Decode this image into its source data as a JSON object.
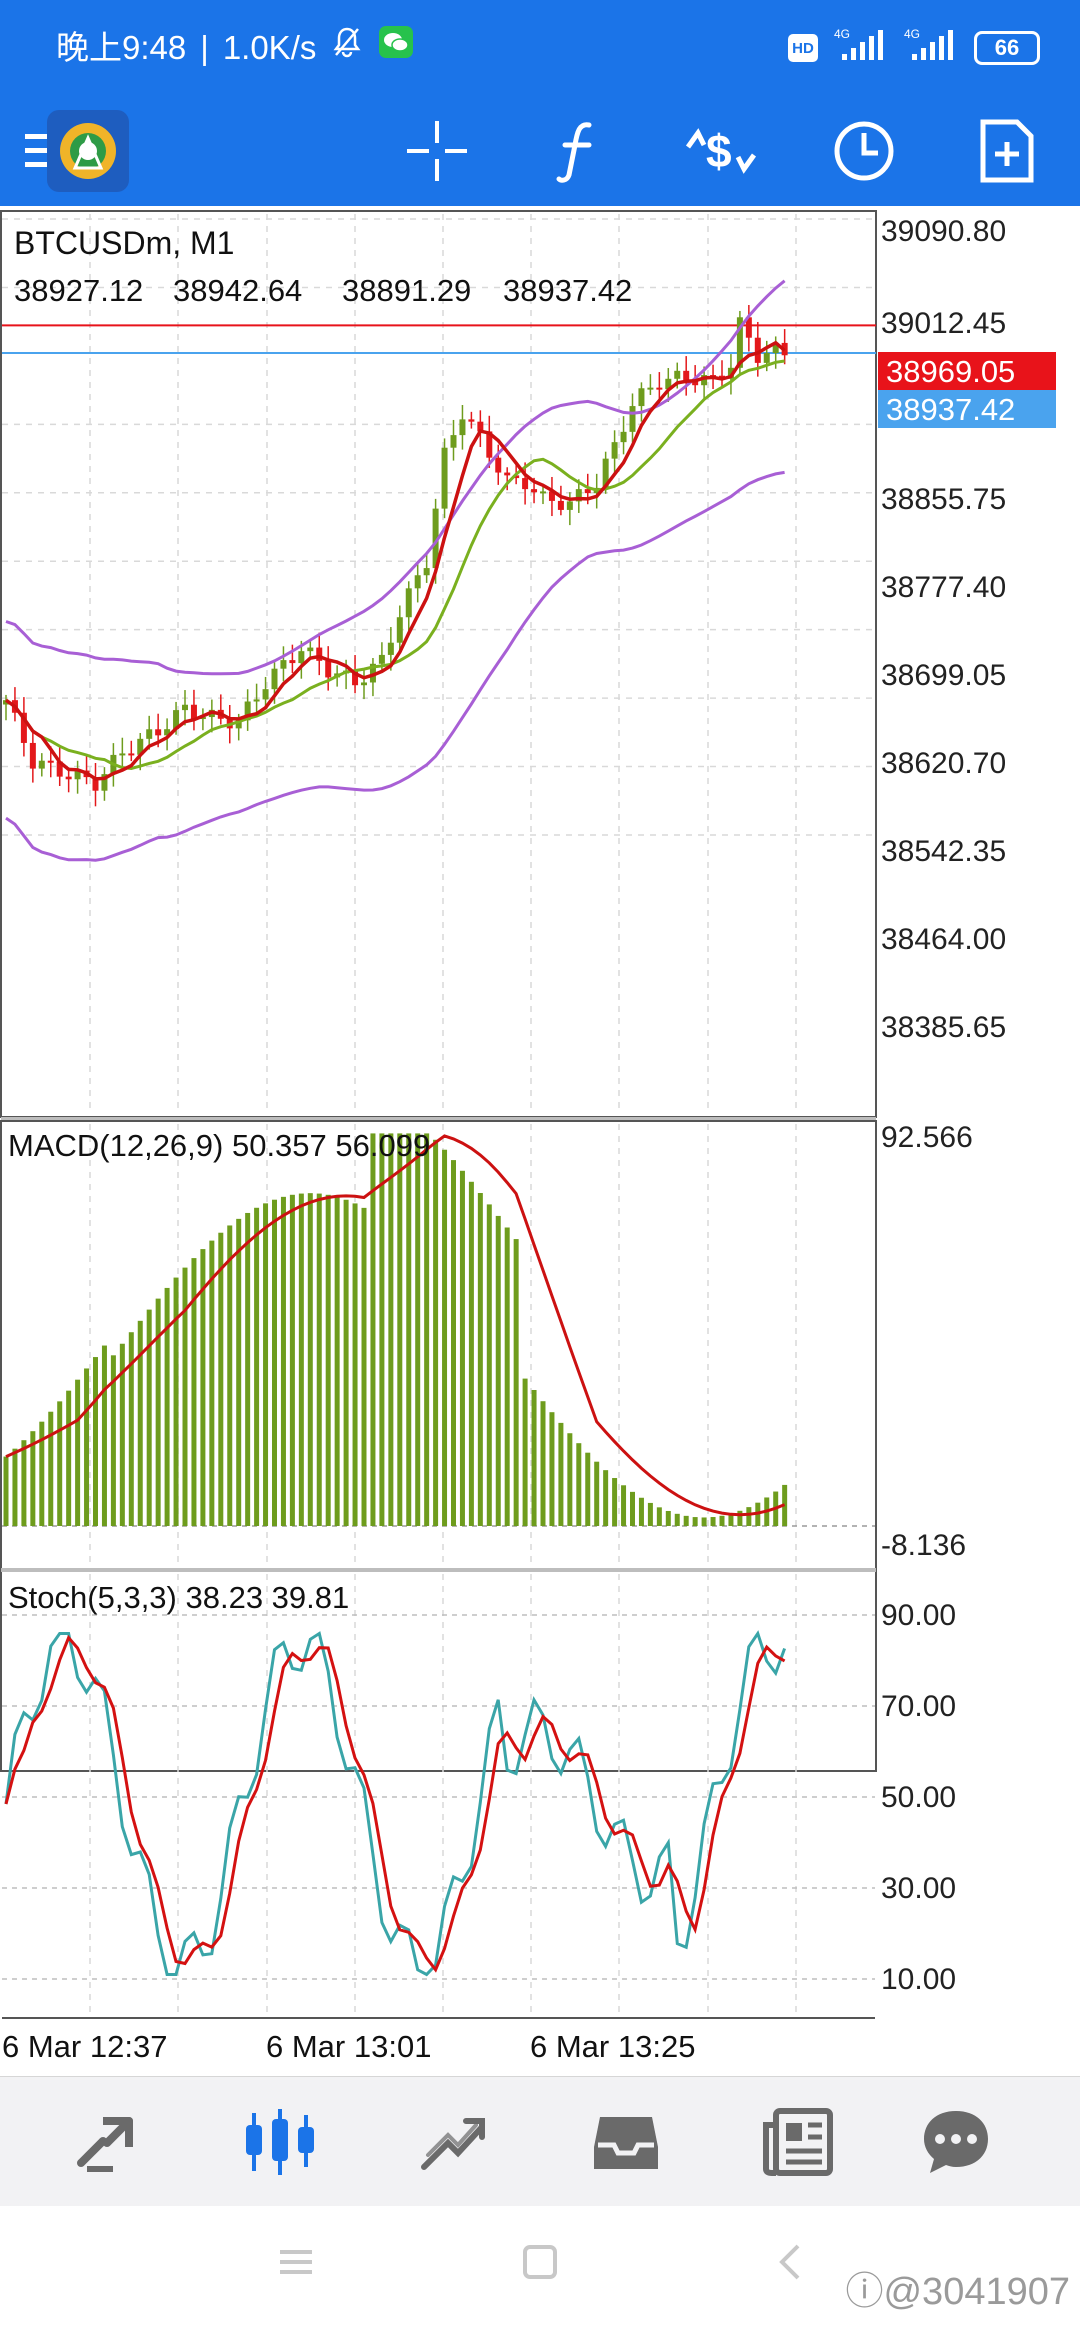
{
  "status_bar": {
    "time": "晚上9:48",
    "net_speed": "1.0K/s",
    "separator": "|",
    "signal_1": "4G",
    "signal_2": "4G",
    "battery": "66"
  },
  "toolbar": {
    "icons": [
      "menu-icon",
      "app-logo",
      "crosshair-icon",
      "indicators-icon",
      "trade-icon",
      "timeframe-icon",
      "new-order-icon"
    ]
  },
  "chart": {
    "symbol": "BTCUSDm, M1",
    "ohlc": [
      "38927.12",
      "38942.64",
      "38891.29",
      "38937.42"
    ],
    "price_scale": [
      "39090.80",
      "39012.45",
      "38855.75",
      "38777.40",
      "38699.05",
      "38620.70",
      "38542.35",
      "38464.00",
      "38385.65"
    ],
    "ask_line": {
      "label": "38969.05",
      "value": 38969.05,
      "color": "#e8131a"
    },
    "bid_line": {
      "label": "38937.42",
      "value": 38937.42,
      "color": "#4aa3ee"
    },
    "time_labels": [
      "6 Mar 12:37",
      "6 Mar 13:01",
      "6 Mar 13:25"
    ],
    "colors": {
      "bull": "#6e9c1d",
      "bear": "#e3181b",
      "bands": "#a85fd5",
      "ma_fast": "#cc1111",
      "ma_slow": "#7ab01f"
    }
  },
  "macd": {
    "label": "MACD(12,26,9) 50.357 56.099",
    "scale_top": "92.566",
    "scale_bottom": "-8.136",
    "colors": {
      "histogram": "#6e9c1d",
      "signal": "#cc1111"
    }
  },
  "stoch": {
    "label": "Stoch(5,3,3) 38.23 39.81",
    "levels": [
      "90.00",
      "70.00",
      "50.00",
      "30.00",
      "10.00"
    ],
    "colors": {
      "main": "#3aa5a8",
      "signal": "#d41111"
    }
  },
  "bottom_nav": {
    "items": [
      "quotes-icon",
      "chart-icon",
      "trade-icon",
      "history-icon",
      "news-icon",
      "chat-icon"
    ],
    "active": "chart-icon",
    "active_color": "#1b74e8"
  },
  "system_nav": {
    "watermark": "@3041907"
  }
}
